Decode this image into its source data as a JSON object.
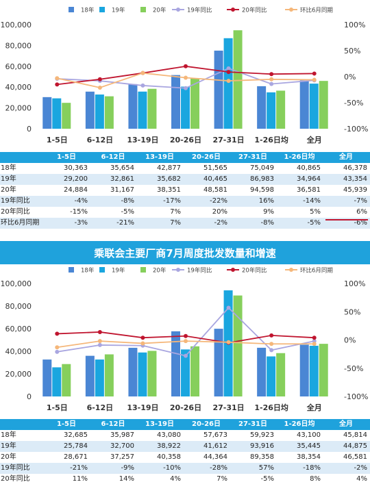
{
  "chart_data": [
    {
      "type": "bar",
      "title": "",
      "categories": [
        "1-5日",
        "6-12日",
        "13-19日",
        "20-26日",
        "27-31日",
        "1-26日均",
        "全月"
      ],
      "ylim": [
        0,
        100000
      ],
      "y_ticks": [
        "0",
        "20,000",
        "40,000",
        "60,000",
        "80,000",
        "100,000"
      ],
      "y2lim": [
        -100,
        100
      ],
      "y2_ticks": [
        "-100%",
        "-50%",
        "0%",
        "50%",
        "100%"
      ],
      "legend": [
        "18年",
        "19年",
        "20年",
        "19年同比",
        "20年同比",
        "环比6月同期"
      ],
      "legend_position": "top",
      "series": [
        {
          "name": "18年",
          "kind": "bar",
          "color": "#4a86d4",
          "values": [
            30363,
            35654,
            42877,
            51565,
            75049,
            40865,
            46378
          ]
        },
        {
          "name": "19年",
          "kind": "bar",
          "color": "#1aa6df",
          "values": [
            29200,
            32861,
            35682,
            40465,
            86983,
            34964,
            43354
          ]
        },
        {
          "name": "20年",
          "kind": "bar",
          "color": "#86cf5c",
          "values": [
            24884,
            31167,
            38351,
            48581,
            94598,
            36581,
            45939
          ]
        },
        {
          "name": "19年同比",
          "kind": "line",
          "color": "#a9a6e0",
          "values": [
            -4,
            -8,
            -17,
            -22,
            16,
            -14,
            -7
          ]
        },
        {
          "name": "20年同比",
          "kind": "line",
          "color": "#c0152f",
          "values": [
            -15,
            -5,
            7,
            20,
            9,
            5,
            6
          ]
        },
        {
          "name": "环比6月同期",
          "kind": "line",
          "color": "#f5b77a",
          "values": [
            -3,
            -21,
            7,
            -2,
            -8,
            -5,
            -6
          ]
        }
      ]
    },
    {
      "type": "bar",
      "title": "乘联会主要厂商7月周度批发数量和增速",
      "categories": [
        "1-5日",
        "6-12日",
        "13-19日",
        "20-26日",
        "27-31日",
        "1-26日均",
        "全月"
      ],
      "ylim": [
        0,
        100000
      ],
      "y_ticks": [
        "0",
        "20,000",
        "40,000",
        "60,000",
        "80,000",
        "100,000"
      ],
      "y2lim": [
        -100,
        100
      ],
      "y2_ticks": [
        "-100%",
        "-50%",
        "0%",
        "50%",
        "100%"
      ],
      "legend": [
        "18年",
        "19年",
        "20年",
        "19年同比",
        "20年同比",
        "环比6月同期"
      ],
      "legend_position": "top",
      "series": [
        {
          "name": "18年",
          "kind": "bar",
          "color": "#4a86d4",
          "values": [
            32685,
            35987,
            43080,
            57673,
            59923,
            43100,
            45814
          ]
        },
        {
          "name": "19年",
          "kind": "bar",
          "color": "#1aa6df",
          "values": [
            25784,
            32700,
            38922,
            41612,
            93916,
            35445,
            44875
          ]
        },
        {
          "name": "20年",
          "kind": "bar",
          "color": "#86cf5c",
          "values": [
            28671,
            37257,
            40358,
            44364,
            89358,
            38354,
            46581
          ]
        },
        {
          "name": "19年同比",
          "kind": "line",
          "color": "#a9a6e0",
          "values": [
            -21,
            -9,
            -10,
            -28,
            57,
            -18,
            -2
          ]
        },
        {
          "name": "20年同比",
          "kind": "line",
          "color": "#c0152f",
          "values": [
            11,
            14,
            4,
            7,
            -5,
            8,
            4
          ]
        },
        {
          "name": "环比6月同期",
          "kind": "line",
          "color": "#f5b77a",
          "values": [
            -13,
            -2,
            -6,
            -2,
            -4,
            -7,
            -7
          ]
        }
      ]
    }
  ],
  "table1": {
    "headers": [
      "",
      "1-5日",
      "6-12日",
      "13-19日",
      "20-26日",
      "27-31日",
      "1-26日均",
      "全月"
    ],
    "rows": [
      [
        "18年",
        "30,363",
        "35,654",
        "42,877",
        "51,565",
        "75,049",
        "40,865",
        "46,378"
      ],
      [
        "19年",
        "29,200",
        "32,861",
        "35,682",
        "40,465",
        "86,983",
        "34,964",
        "43,354"
      ],
      [
        "20年",
        "24,884",
        "31,167",
        "38,351",
        "48,581",
        "94,598",
        "36,581",
        "45,939"
      ],
      [
        "19年同比",
        "-4%",
        "-8%",
        "-17%",
        "-22%",
        "16%",
        "-14%",
        "-7%"
      ],
      [
        "20年同比",
        "-15%",
        "-5%",
        "7%",
        "20%",
        "9%",
        "5%",
        "6%"
      ],
      [
        "环比6月同期",
        "-3%",
        "-21%",
        "7%",
        "-2%",
        "-8%",
        "-5%",
        "-6%"
      ]
    ]
  },
  "table2": {
    "headers": [
      "",
      "1-5日",
      "6-12日",
      "13-19日",
      "20-26日",
      "27-31日",
      "1-26日均",
      "全月"
    ],
    "rows": [
      [
        "18年",
        "32,685",
        "35,987",
        "43,080",
        "57,673",
        "59,923",
        "43,100",
        "45,814"
      ],
      [
        "19年",
        "25,784",
        "32,700",
        "38,922",
        "41,612",
        "93,916",
        "35,445",
        "44,875"
      ],
      [
        "20年",
        "28,671",
        "37,257",
        "40,358",
        "44,364",
        "89,358",
        "38,354",
        "46,581"
      ],
      [
        "19年同比",
        "-21%",
        "-9%",
        "-10%",
        "-28%",
        "57%",
        "-18%",
        "-2%"
      ],
      [
        "20年同比",
        "11%",
        "14%",
        "4%",
        "7%",
        "-5%",
        "8%",
        "4%"
      ]
    ]
  }
}
